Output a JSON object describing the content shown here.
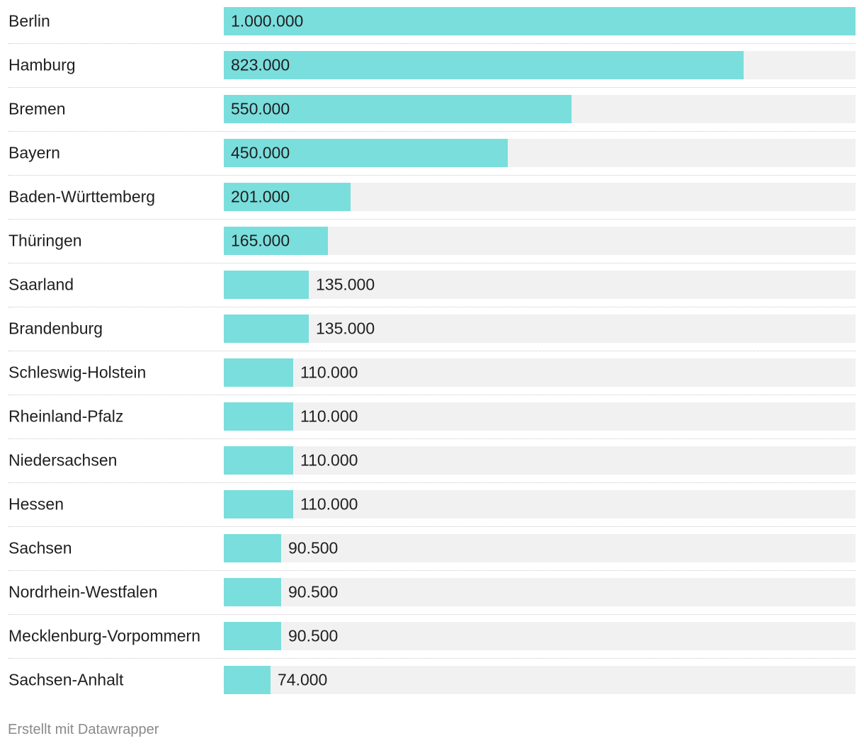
{
  "chart_data": {
    "type": "bar",
    "orientation": "horizontal",
    "categories": [
      "Berlin",
      "Hamburg",
      "Bremen",
      "Bayern",
      "Baden-Württemberg",
      "Thüringen",
      "Saarland",
      "Brandenburg",
      "Schleswig-Holstein",
      "Rheinland-Pfalz",
      "Niedersachsen",
      "Hessen",
      "Sachsen",
      "Nordrhein-Westfalen",
      "Mecklenburg-Vorpommern",
      "Sachsen-Anhalt"
    ],
    "values": [
      1000000,
      823000,
      550000,
      450000,
      201000,
      165000,
      135000,
      135000,
      110000,
      110000,
      110000,
      110000,
      90500,
      90500,
      90500,
      74000
    ],
    "value_labels": [
      "1.000.000",
      "823.000",
      "550.000",
      "450.000",
      "201.000",
      "165.000",
      "135.000",
      "135.000",
      "110.000",
      "110.000",
      "110.000",
      "110.000",
      "90.500",
      "90.500",
      "90.500",
      "74.000"
    ],
    "xlim": [
      0,
      1000000
    ],
    "title": "",
    "xlabel": "",
    "ylabel": ""
  },
  "footer": {
    "credit": "Erstellt mit Datawrapper"
  },
  "colors": {
    "bar": "#7adedd",
    "track": "#f1f1f1",
    "text": "#1f1f1f",
    "footer": "#8a8a8a"
  }
}
